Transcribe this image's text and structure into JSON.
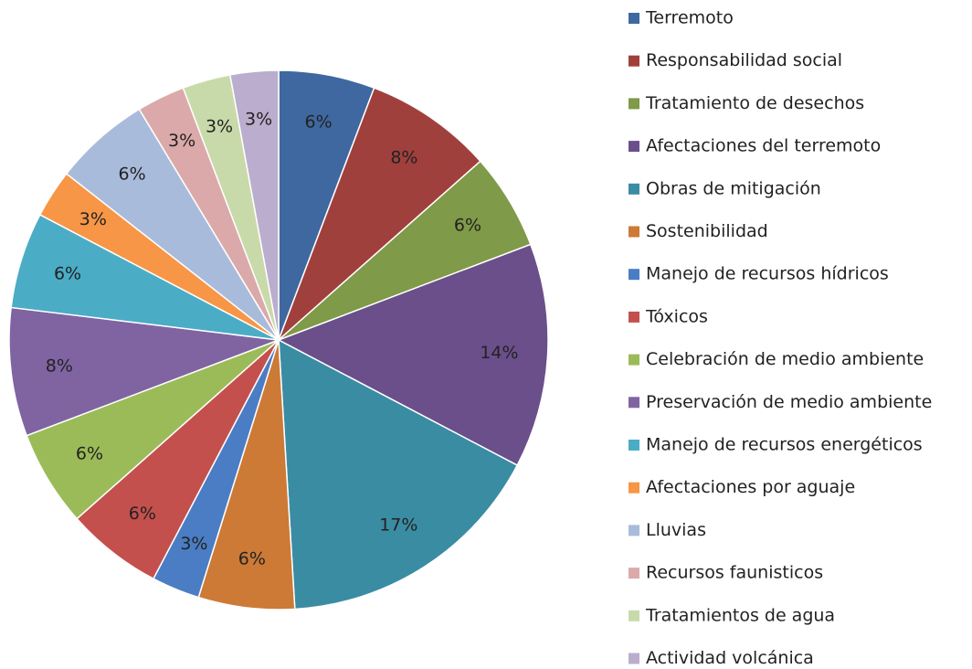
{
  "chart_data": {
    "type": "pie",
    "categories": [
      "Terremoto",
      "Responsabilidad social",
      "Tratamiento de desechos",
      "Afectaciones del terremoto",
      "Obras de mitigación",
      "Sostenibilidad",
      "Manejo de recursos hídricos",
      "Tóxicos",
      "Celebración de medio ambiente",
      "Preservación de medio ambiente",
      "Manejo de recursos energéticos",
      "Afectaciones por aguaje",
      "Lluvias",
      "Recursos faunisticos",
      "Tratamientos de agua",
      "Actividad volcánica"
    ],
    "values": [
      6,
      8,
      6,
      14,
      17,
      6,
      3,
      6,
      6,
      8,
      6,
      3,
      6,
      3,
      3,
      3
    ],
    "value_labels": [
      "6%",
      "8%",
      "6%",
      "14%",
      "17%",
      "6%",
      "3%",
      "6%",
      "6%",
      "8%",
      "6%",
      "3%",
      "6%",
      "3%",
      "3%",
      "3%"
    ],
    "colors": [
      "#3f68a0",
      "#a0403d",
      "#7f9a48",
      "#6a4f8a",
      "#3a8ca3",
      "#cc7a36",
      "#4a7dc4",
      "#c4504d",
      "#9bbb59",
      "#8064a2",
      "#4bacc6",
      "#f79646",
      "#a9bbdb",
      "#dba9a9",
      "#c9daaa",
      "#bbadcd"
    ],
    "legend": "right"
  }
}
